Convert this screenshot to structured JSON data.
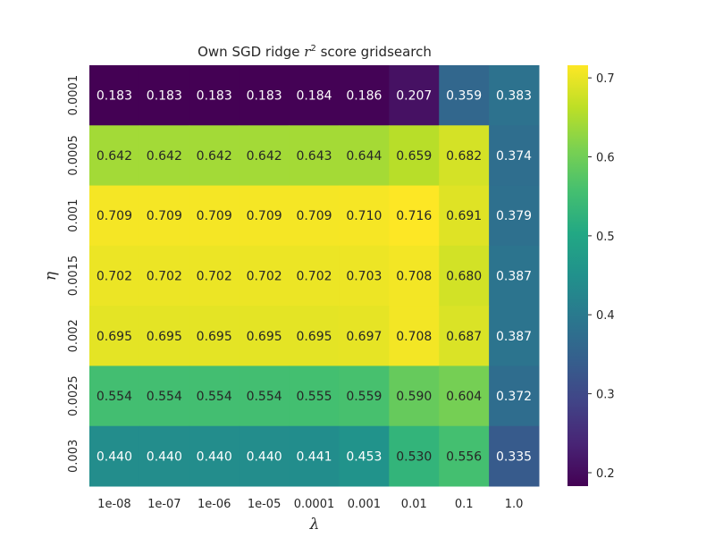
{
  "chart_data": {
    "type": "heatmap",
    "title_prefix": "Own SGD ridge ",
    "title_var": "r",
    "title_sup": "2",
    "title_suffix": " score gridsearch",
    "xlabel": "λ",
    "ylabel": "η",
    "x_categories": [
      "1e-08",
      "1e-07",
      "1e-06",
      "1e-05",
      "0.0001",
      "0.001",
      "0.01",
      "0.1",
      "1.0"
    ],
    "y_categories": [
      "0.0001",
      "0.0005",
      "0.001",
      "0.0015",
      "0.002",
      "0.0025",
      "0.003"
    ],
    "values": [
      [
        0.183,
        0.183,
        0.183,
        0.183,
        0.184,
        0.186,
        0.207,
        0.359,
        0.383
      ],
      [
        0.642,
        0.642,
        0.642,
        0.642,
        0.643,
        0.644,
        0.659,
        0.682,
        0.374
      ],
      [
        0.709,
        0.709,
        0.709,
        0.709,
        0.709,
        0.71,
        0.716,
        0.691,
        0.379
      ],
      [
        0.702,
        0.702,
        0.702,
        0.702,
        0.702,
        0.703,
        0.708,
        0.68,
        0.387
      ],
      [
        0.695,
        0.695,
        0.695,
        0.695,
        0.695,
        0.697,
        0.708,
        0.687,
        0.387
      ],
      [
        0.554,
        0.554,
        0.554,
        0.554,
        0.555,
        0.559,
        0.59,
        0.604,
        0.372
      ],
      [
        0.44,
        0.44,
        0.44,
        0.44,
        0.441,
        0.453,
        0.53,
        0.556,
        0.335
      ]
    ],
    "cell_labels": [
      [
        "0.183",
        "0.183",
        "0.183",
        "0.183",
        "0.184",
        "0.186",
        "0.207",
        "0.359",
        "0.383"
      ],
      [
        "0.642",
        "0.642",
        "0.642",
        "0.642",
        "0.643",
        "0.644",
        "0.659",
        "0.682",
        "0.374"
      ],
      [
        "0.709",
        "0.709",
        "0.709",
        "0.709",
        "0.709",
        "0.710",
        "0.716",
        "0.691",
        "0.379"
      ],
      [
        "0.702",
        "0.702",
        "0.702",
        "0.702",
        "0.702",
        "0.703",
        "0.708",
        "0.680",
        "0.387"
      ],
      [
        "0.695",
        "0.695",
        "0.695",
        "0.695",
        "0.695",
        "0.697",
        "0.708",
        "0.687",
        "0.387"
      ],
      [
        "0.554",
        "0.554",
        "0.554",
        "0.554",
        "0.555",
        "0.559",
        "0.590",
        "0.604",
        "0.372"
      ],
      [
        "0.440",
        "0.440",
        "0.440",
        "0.440",
        "0.441",
        "0.453",
        "0.530",
        "0.556",
        "0.335"
      ]
    ],
    "colormap": "viridis",
    "vmin": 0.183,
    "vmax": 0.716,
    "colorbar_ticks": [
      0.2,
      0.3,
      0.4,
      0.5,
      0.6,
      0.7
    ],
    "colorbar_tick_labels": [
      "0.2",
      "0.3",
      "0.4",
      "0.5",
      "0.6",
      "0.7"
    ],
    "annotation_colors": {
      "light": "#ffffff",
      "dark": "#262626"
    },
    "grid": false
  }
}
